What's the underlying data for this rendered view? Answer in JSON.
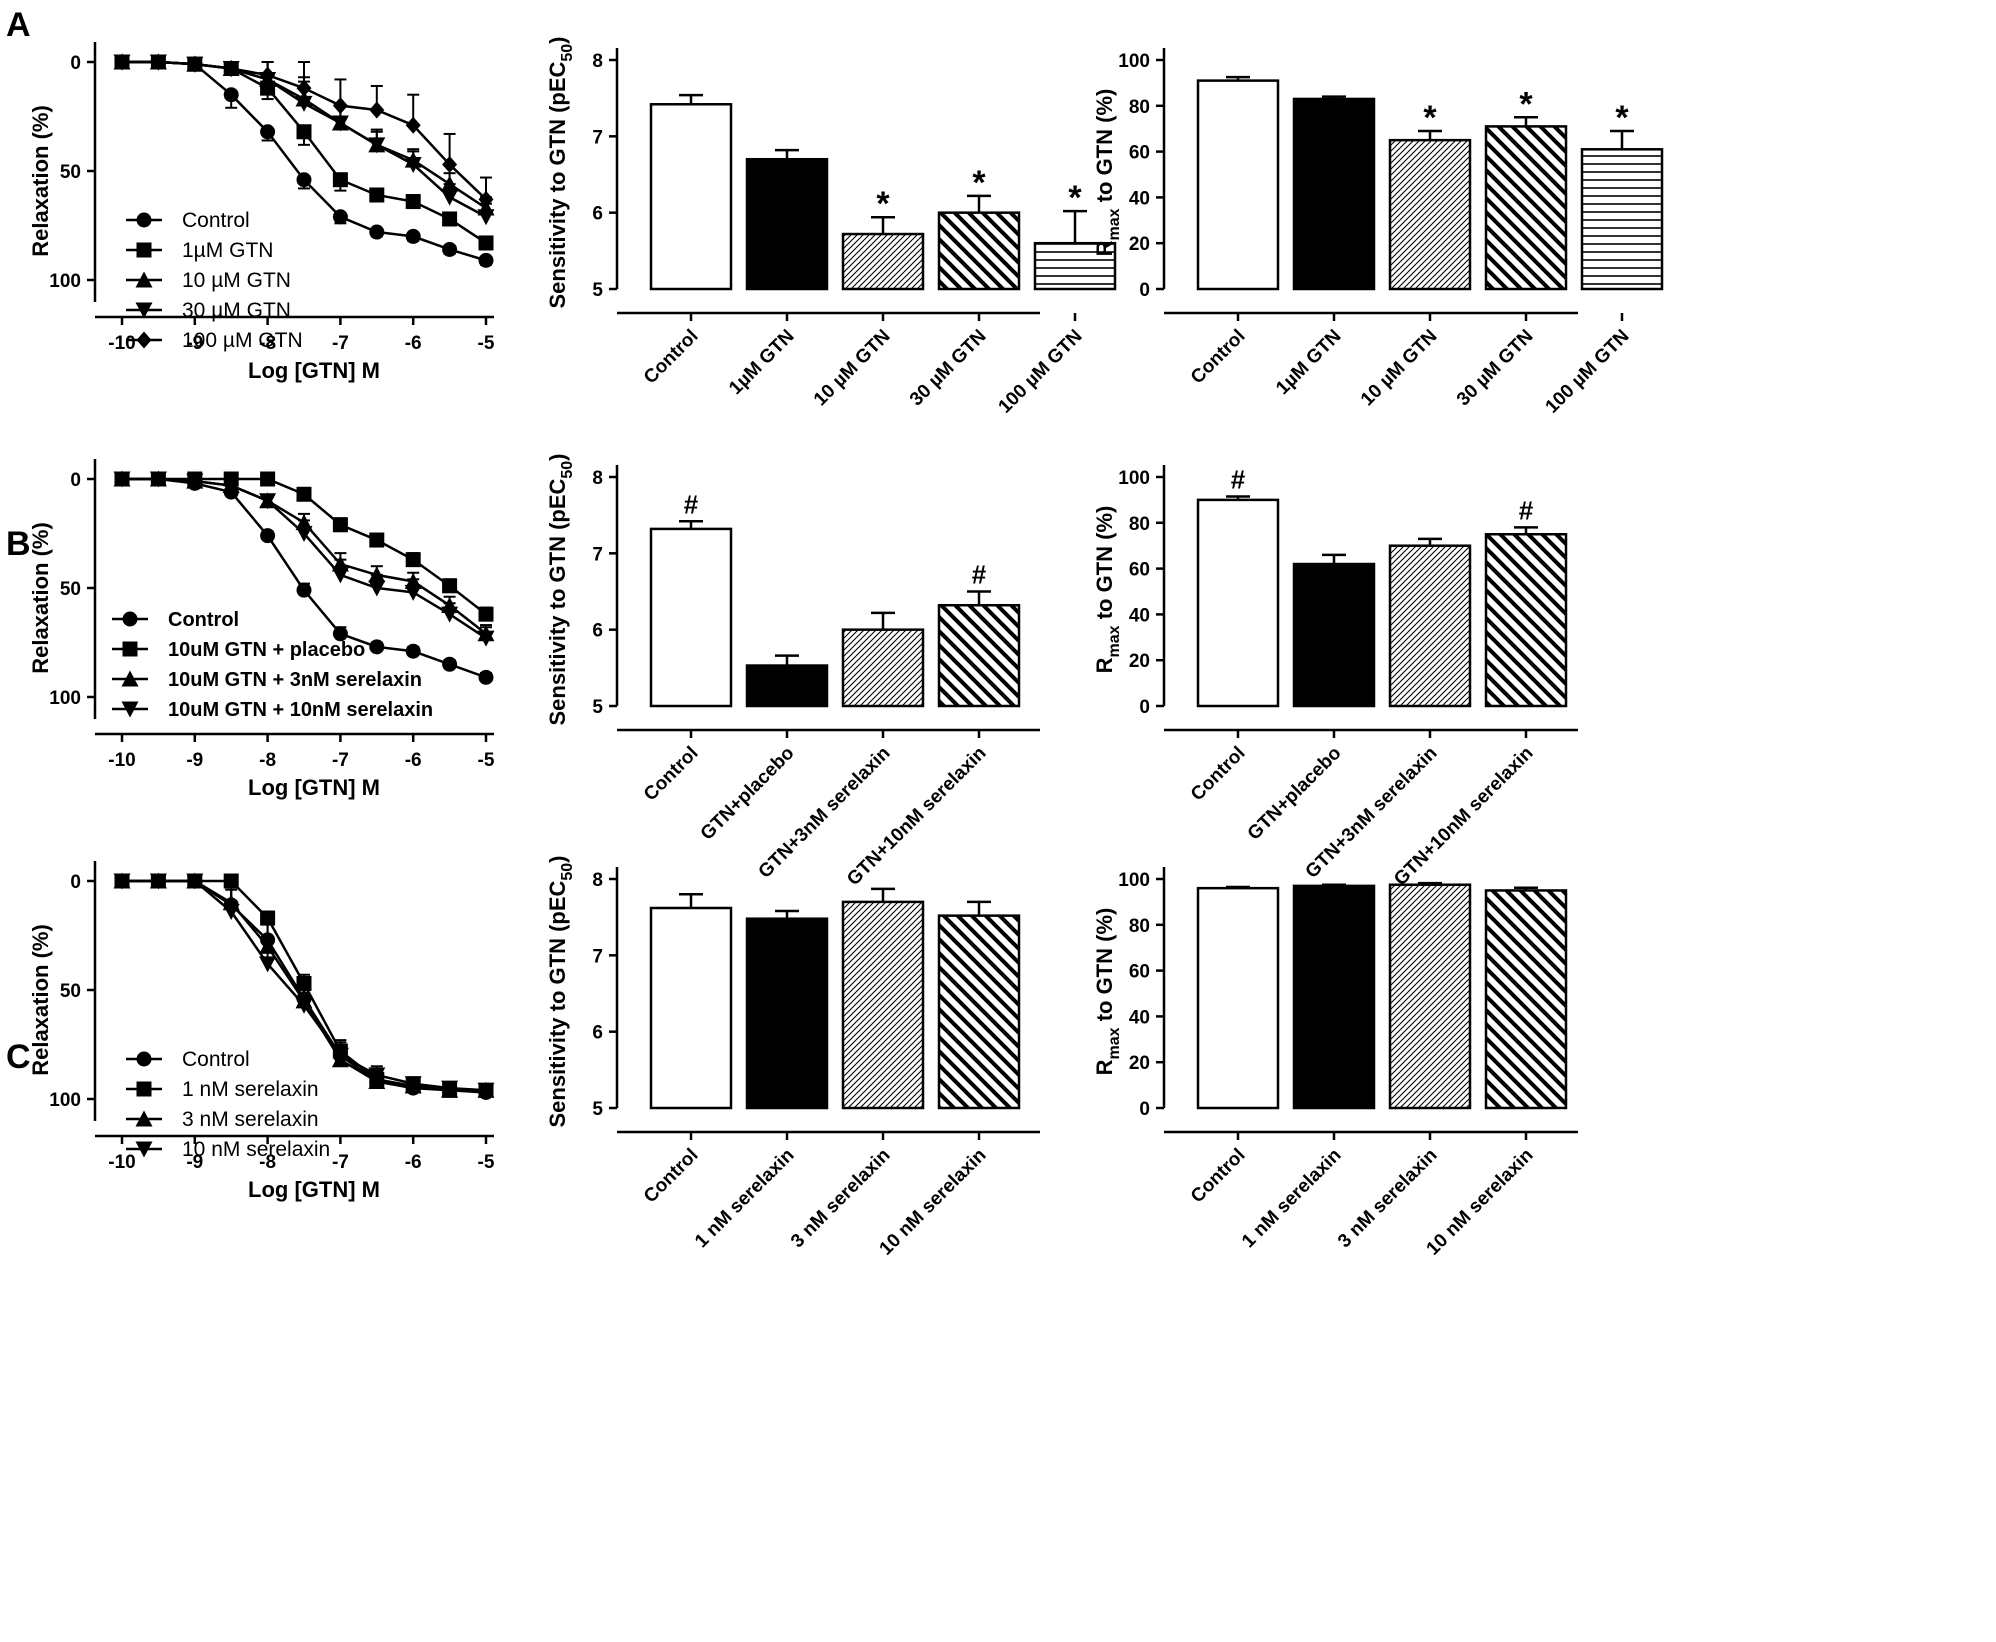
{
  "chart_data": [
    {
      "panel": "A",
      "type": "line",
      "xlabel": "Log [GTN] M",
      "ylabel": "Relaxation (%)",
      "xlim": [
        -10,
        -5
      ],
      "ylim": [
        0,
        100
      ],
      "y_inverted": true,
      "xticks": [
        "-10",
        "-9",
        "-8",
        "-7",
        "-6",
        "-5"
      ],
      "yticks": [
        "0",
        "50",
        "100"
      ],
      "legend_style": "normal",
      "x": [
        -10,
        -9.5,
        -9,
        -8.5,
        -8,
        -7.5,
        -7,
        -6.5,
        -6,
        -5.5,
        -5
      ],
      "series": [
        {
          "name": "Control",
          "marker": "circle",
          "values": [
            0,
            0,
            1,
            15,
            32,
            54,
            71,
            78,
            80,
            86,
            91
          ],
          "err": [
            0,
            0,
            1,
            6,
            4,
            4,
            3,
            2,
            2,
            2,
            2
          ]
        },
        {
          "name": "1µM GTN",
          "marker": "square",
          "values": [
            0,
            0,
            1,
            3,
            12,
            32,
            54,
            61,
            64,
            72,
            83
          ],
          "err": [
            0,
            0,
            1,
            2,
            5,
            6,
            5,
            3,
            3,
            3,
            3
          ]
        },
        {
          "name": "10 µM GTN",
          "marker": "triangle-up",
          "values": [
            0,
            0,
            1,
            3,
            8,
            17,
            28,
            38,
            45,
            56,
            67
          ],
          "err": [
            0,
            0,
            1,
            3,
            8,
            10,
            8,
            6,
            5,
            5,
            5
          ]
        },
        {
          "name": "30 µM GTN",
          "marker": "triangle-down",
          "values": [
            0,
            0,
            1,
            3,
            8,
            19,
            28,
            38,
            47,
            62,
            71
          ],
          "err": [
            0,
            0,
            1,
            3,
            8,
            10,
            8,
            7,
            6,
            6,
            6
          ]
        },
        {
          "name": "100 µM GTN",
          "marker": "diamond",
          "values": [
            0,
            0,
            1,
            3,
            6,
            12,
            20,
            22,
            29,
            47,
            63
          ],
          "err": [
            0,
            0,
            1,
            3,
            6,
            12,
            12,
            11,
            14,
            14,
            10
          ]
        }
      ]
    },
    {
      "panel": "A",
      "type": "bar",
      "ylabel": "Sensitivity to GTN (pEC50)",
      "ylabel_main": "Sensitivity to GTN (pEC",
      "ylabel_sub": "50",
      "ylabel_end": ")",
      "ylim": [
        5,
        8
      ],
      "yticks": [
        "5",
        "6",
        "7",
        "8"
      ],
      "categories": [
        "Control",
        "1µM GTN",
        "10 µM GTN",
        "30 µM GTN",
        "100 µM GTN"
      ],
      "values": [
        7.42,
        6.7,
        5.72,
        6.0,
        5.6
      ],
      "err": [
        0.12,
        0.12,
        0.22,
        0.22,
        0.42
      ],
      "fills": [
        "white",
        "black",
        "diag-fine",
        "diag-bold",
        "horizontal"
      ],
      "annotations": [
        "",
        "",
        "*",
        "*",
        "*"
      ]
    },
    {
      "panel": "A",
      "type": "bar",
      "ylabel": "Rmax to GTN (%)",
      "ylabel_main": "R",
      "ylabel_sub": "max",
      "ylabel_end": " to GTN (%)",
      "ylim": [
        0,
        100
      ],
      "yticks": [
        "0",
        "20",
        "40",
        "60",
        "80",
        "100"
      ],
      "categories": [
        "Control",
        "1µM GTN",
        "10 µM GTN",
        "30 µM GTN",
        "100 µM GTN"
      ],
      "values": [
        91,
        83,
        65,
        71,
        61
      ],
      "err": [
        1.5,
        1,
        4,
        4,
        8
      ],
      "fills": [
        "white",
        "black",
        "diag-fine",
        "diag-bold",
        "horizontal"
      ],
      "annotations": [
        "",
        "",
        "*",
        "*",
        "*"
      ]
    },
    {
      "panel": "B",
      "type": "line",
      "xlabel": "Log [GTN] M",
      "ylabel": "Relaxation (%)",
      "xlim": [
        -10,
        -5
      ],
      "ylim": [
        0,
        100
      ],
      "y_inverted": true,
      "xticks": [
        "-10",
        "-9",
        "-8",
        "-7",
        "-6",
        "-5"
      ],
      "yticks": [
        "0",
        "50",
        "100"
      ],
      "legend_style": "bold",
      "x": [
        -10,
        -9.5,
        -9,
        -8.5,
        -8,
        -7.5,
        -7,
        -6.5,
        -6,
        -5.5,
        -5
      ],
      "series": [
        {
          "name": "Control",
          "marker": "circle",
          "values": [
            0,
            0,
            2,
            6,
            26,
            51,
            71,
            77,
            79,
            85,
            91
          ],
          "err": [
            0,
            0,
            1,
            2,
            2,
            3,
            3,
            2,
            2,
            2,
            2
          ]
        },
        {
          "name": "10uM GTN + placebo",
          "marker": "square",
          "values": [
            0,
            0,
            0,
            0,
            0,
            7,
            21,
            28,
            37,
            49,
            62
          ],
          "err": [
            0,
            0,
            0,
            0,
            1,
            2,
            3,
            3,
            3,
            3,
            3
          ]
        },
        {
          "name": "10uM GTN + 3nM serelaxin",
          "marker": "triangle-up",
          "values": [
            0,
            0,
            1,
            3,
            10,
            20,
            39,
            44,
            47,
            58,
            71
          ],
          "err": [
            0,
            0,
            1,
            2,
            2,
            4,
            5,
            4,
            4,
            4,
            4
          ]
        },
        {
          "name": "10uM GTN + 10nM serelaxin",
          "marker": "triangle-down",
          "values": [
            0,
            0,
            1,
            3,
            10,
            25,
            44,
            50,
            52,
            62,
            73
          ],
          "err": [
            0,
            0,
            1,
            2,
            2,
            6,
            7,
            6,
            6,
            5,
            5
          ]
        }
      ]
    },
    {
      "panel": "B",
      "type": "bar",
      "ylabel": "Sensitivity to GTN (pEC50)",
      "ylabel_main": "Sensitivity to GTN (pEC",
      "ylabel_sub": "50",
      "ylabel_end": ")",
      "ylim": [
        5,
        8
      ],
      "yticks": [
        "5",
        "6",
        "7",
        "8"
      ],
      "categories": [
        "Control",
        "GTN+placebo",
        "GTN+3nM serelaxin",
        "GTN+10nM serelaxin"
      ],
      "values": [
        7.32,
        5.53,
        6.0,
        6.32
      ],
      "err": [
        0.1,
        0.13,
        0.22,
        0.18
      ],
      "fills": [
        "white",
        "black",
        "diag-fine",
        "diag-bold"
      ],
      "annotations": [
        "#",
        "",
        "",
        "#"
      ]
    },
    {
      "panel": "B",
      "type": "bar",
      "ylabel": "Rmax to GTN (%)",
      "ylabel_main": "R",
      "ylabel_sub": "max",
      "ylabel_end": " to GTN (%)",
      "ylim": [
        0,
        100
      ],
      "yticks": [
        "0",
        "20",
        "40",
        "60",
        "80",
        "100"
      ],
      "categories": [
        "Control",
        "GTN+placebo",
        "GTN+3nM serelaxin",
        "GTN+10nM serelaxin"
      ],
      "values": [
        90,
        62,
        70,
        75
      ],
      "err": [
        1.5,
        4,
        3,
        3
      ],
      "fills": [
        "white",
        "black",
        "diag-fine",
        "diag-bold"
      ],
      "annotations": [
        "#",
        "",
        "",
        "#"
      ]
    },
    {
      "panel": "C",
      "type": "line",
      "xlabel": "Log [GTN] M",
      "ylabel": "Relaxation (%)",
      "xlim": [
        -10,
        -5
      ],
      "ylim": [
        0,
        100
      ],
      "y_inverted": true,
      "xticks": [
        "-10",
        "-9",
        "-8",
        "-7",
        "-6",
        "-5"
      ],
      "yticks": [
        "0",
        "50",
        "100"
      ],
      "legend_style": "normal",
      "x": [
        -10,
        -9.5,
        -9,
        -8.5,
        -8,
        -7.5,
        -7,
        -6.5,
        -6,
        -5.5,
        -5
      ],
      "series": [
        {
          "name": "Control",
          "marker": "circle",
          "values": [
            0,
            0,
            0,
            11,
            27,
            54,
            80,
            92,
            95,
            96,
            97
          ],
          "err": [
            0,
            0,
            1,
            8,
            8,
            6,
            4,
            3,
            2,
            2,
            2
          ]
        },
        {
          "name": "1 nM serelaxin",
          "marker": "square",
          "values": [
            0,
            0,
            0,
            0,
            17,
            47,
            78,
            91,
            94,
            96,
            96
          ],
          "err": [
            0,
            0,
            1,
            2,
            3,
            4,
            4,
            3,
            2,
            2,
            2
          ]
        },
        {
          "name": "3 nM serelaxin",
          "marker": "triangle-up",
          "values": [
            0,
            0,
            0,
            10,
            30,
            55,
            82,
            92,
            94,
            96,
            96
          ],
          "err": [
            0,
            0,
            1,
            8,
            10,
            8,
            6,
            3,
            2,
            2,
            2
          ]
        },
        {
          "name": "10 nM serelaxin",
          "marker": "triangle-down",
          "values": [
            0,
            0,
            0,
            14,
            38,
            57,
            80,
            89,
            93,
            95,
            96
          ],
          "err": [
            0,
            0,
            1,
            10,
            10,
            8,
            7,
            4,
            3,
            2,
            2
          ]
        }
      ]
    },
    {
      "panel": "C",
      "type": "bar",
      "ylabel": "Sensitivity to GTN (pEC50)",
      "ylabel_main": "Sensitivity to GTN (pEC",
      "ylabel_sub": "50",
      "ylabel_end": ")",
      "ylim": [
        5,
        8
      ],
      "yticks": [
        "5",
        "6",
        "7",
        "8"
      ],
      "categories": [
        "Control",
        "1 nM serelaxin",
        "3 nM serelaxin",
        "10 nM serelaxin"
      ],
      "values": [
        7.62,
        7.48,
        7.7,
        7.52
      ],
      "err": [
        0.18,
        0.1,
        0.17,
        0.18
      ],
      "fills": [
        "white",
        "black",
        "diag-fine",
        "diag-bold"
      ],
      "annotations": [
        "",
        "",
        "",
        ""
      ]
    },
    {
      "panel": "C",
      "type": "bar",
      "ylabel": "Rmax to GTN (%)",
      "ylabel_main": "R",
      "ylabel_sub": "max",
      "ylabel_end": " to GTN (%)",
      "ylim": [
        0,
        100
      ],
      "yticks": [
        "0",
        "20",
        "40",
        "60",
        "80",
        "100"
      ],
      "categories": [
        "Control",
        "1 nM serelaxin",
        "3 nM serelaxin",
        "10 nM serelaxin"
      ],
      "values": [
        96,
        97,
        97.5,
        95
      ],
      "err": [
        0.5,
        0.5,
        0.7,
        1.2
      ],
      "fills": [
        "white",
        "black",
        "diag-fine",
        "diag-bold"
      ],
      "annotations": [
        "",
        "",
        "",
        ""
      ]
    }
  ]
}
